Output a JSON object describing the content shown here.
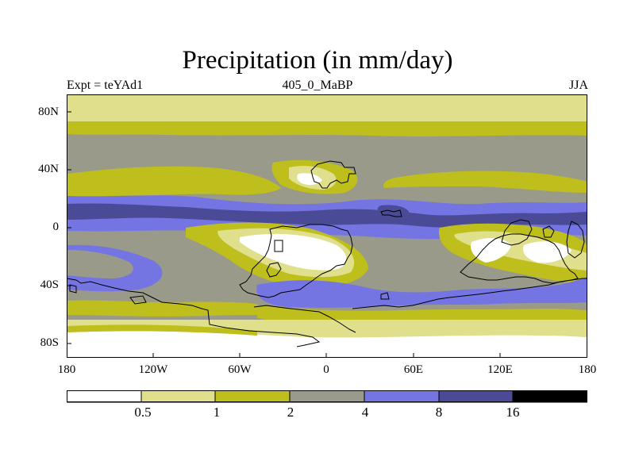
{
  "title": "Precipitation (in mm/day)",
  "subtitle_left": "Expt = teYAd1",
  "subtitle_center": "405_0_MaBP",
  "subtitle_right": "JJA",
  "y_ticks": [
    "80N",
    "40N",
    "0",
    "40S",
    "80S"
  ],
  "x_ticks": [
    "180",
    "120W",
    "60W",
    "0",
    "60E",
    "120E",
    "180"
  ],
  "colorbar": {
    "labels": [
      "0.5",
      "1",
      "2",
      "4",
      "8",
      "16"
    ],
    "colors": [
      "#ffffff",
      "#e0e08c",
      "#bebe1c",
      "#9a9a8a",
      "#7474e2",
      "#4a4a96",
      "#000000"
    ]
  },
  "colors": {
    "coast": "#000000",
    "frame": "#000000"
  }
}
